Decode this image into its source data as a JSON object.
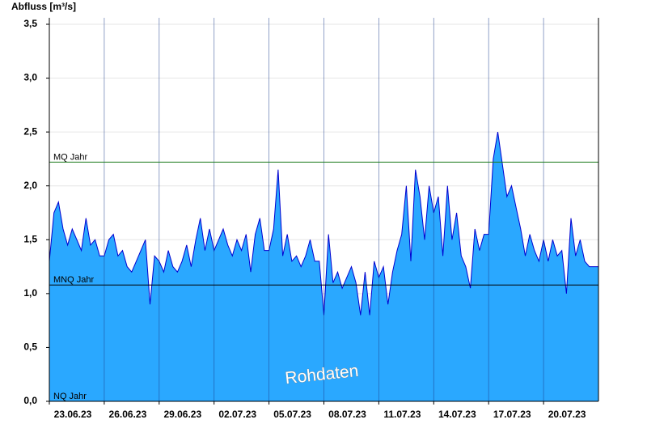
{
  "chart_data": {
    "type": "area",
    "y_label": "Abfluss [m³/s]",
    "watermark": "Rohdaten",
    "xlim": [
      "2023-06-23T00:00",
      "2023-07-23T00:00"
    ],
    "xticks": [
      {
        "value": "2023-06-23T00:00",
        "label": "23.06.23"
      },
      {
        "value": "2023-06-26T00:00",
        "label": "26.06.23"
      },
      {
        "value": "2023-06-29T00:00",
        "label": "29.06.23"
      },
      {
        "value": "2023-07-02T00:00",
        "label": "02.07.23"
      },
      {
        "value": "2023-07-05T00:00",
        "label": "05.07.23"
      },
      {
        "value": "2023-07-08T00:00",
        "label": "08.07.23"
      },
      {
        "value": "2023-07-11T00:00",
        "label": "11.07.23"
      },
      {
        "value": "2023-07-14T00:00",
        "label": "14.07.23"
      },
      {
        "value": "2023-07-17T00:00",
        "label": "17.07.23"
      },
      {
        "value": "2023-07-20T00:00",
        "label": "20.07.23"
      }
    ],
    "ylim": [
      0,
      3.56
    ],
    "yticks": [
      {
        "value": 0,
        "label": "0,0"
      },
      {
        "value": 0.5,
        "label": "0,5"
      },
      {
        "value": 1,
        "label": "1,0"
      },
      {
        "value": 1.5,
        "label": "1,5"
      },
      {
        "value": 2,
        "label": "2,0"
      },
      {
        "value": 2.5,
        "label": "2,5"
      },
      {
        "value": 3,
        "label": "3,0"
      },
      {
        "value": 3.5,
        "label": "3,5"
      }
    ],
    "grid": true,
    "reference_lines": [
      {
        "name": "MQ Jahr",
        "value": 2.22,
        "color": "#1a7a1a"
      },
      {
        "name": "MNQ Jahr",
        "value": 1.08,
        "color": "#000000"
      },
      {
        "name": "NQ Jahr",
        "value": 0,
        "color": "#000000"
      }
    ],
    "series": [
      {
        "fill": "#2aa8ff",
        "color": "#0000d0",
        "x": [
          "2023-06-23T00:00",
          "2023-06-23T06:00",
          "2023-06-23T12:00",
          "2023-06-23T18:00",
          "2023-06-24T00:00",
          "2023-06-24T06:00",
          "2023-06-24T12:00",
          "2023-06-24T18:00",
          "2023-06-25T00:00",
          "2023-06-25T06:00",
          "2023-06-25T12:00",
          "2023-06-25T18:00",
          "2023-06-26T00:00",
          "2023-06-26T06:00",
          "2023-06-26T12:00",
          "2023-06-26T18:00",
          "2023-06-27T00:00",
          "2023-06-27T06:00",
          "2023-06-27T12:00",
          "2023-06-27T18:00",
          "2023-06-28T00:00",
          "2023-06-28T06:00",
          "2023-06-28T12:00",
          "2023-06-28T18:00",
          "2023-06-29T00:00",
          "2023-06-29T06:00",
          "2023-06-29T12:00",
          "2023-06-29T18:00",
          "2023-06-30T00:00",
          "2023-06-30T06:00",
          "2023-06-30T12:00",
          "2023-06-30T18:00",
          "2023-07-01T00:00",
          "2023-07-01T06:00",
          "2023-07-01T12:00",
          "2023-07-01T18:00",
          "2023-07-02T00:00",
          "2023-07-02T06:00",
          "2023-07-02T12:00",
          "2023-07-02T18:00",
          "2023-07-03T00:00",
          "2023-07-03T06:00",
          "2023-07-03T12:00",
          "2023-07-03T18:00",
          "2023-07-04T00:00",
          "2023-07-04T06:00",
          "2023-07-04T12:00",
          "2023-07-04T18:00",
          "2023-07-05T00:00",
          "2023-07-05T06:00",
          "2023-07-05T12:00",
          "2023-07-05T18:00",
          "2023-07-06T00:00",
          "2023-07-06T06:00",
          "2023-07-06T12:00",
          "2023-07-06T18:00",
          "2023-07-07T00:00",
          "2023-07-07T06:00",
          "2023-07-07T12:00",
          "2023-07-07T18:00",
          "2023-07-08T00:00",
          "2023-07-08T06:00",
          "2023-07-08T12:00",
          "2023-07-08T18:00",
          "2023-07-09T00:00",
          "2023-07-09T06:00",
          "2023-07-09T12:00",
          "2023-07-09T18:00",
          "2023-07-10T00:00",
          "2023-07-10T06:00",
          "2023-07-10T12:00",
          "2023-07-10T18:00",
          "2023-07-11T00:00",
          "2023-07-11T06:00",
          "2023-07-11T12:00",
          "2023-07-11T18:00",
          "2023-07-12T00:00",
          "2023-07-12T06:00",
          "2023-07-12T12:00",
          "2023-07-12T18:00",
          "2023-07-13T00:00",
          "2023-07-13T06:00",
          "2023-07-13T12:00",
          "2023-07-13T18:00",
          "2023-07-14T00:00",
          "2023-07-14T06:00",
          "2023-07-14T12:00",
          "2023-07-14T18:00",
          "2023-07-15T00:00",
          "2023-07-15T06:00",
          "2023-07-15T12:00",
          "2023-07-15T18:00",
          "2023-07-16T00:00",
          "2023-07-16T06:00",
          "2023-07-16T12:00",
          "2023-07-16T18:00",
          "2023-07-17T00:00",
          "2023-07-17T06:00",
          "2023-07-17T12:00",
          "2023-07-17T18:00",
          "2023-07-18T00:00",
          "2023-07-18T06:00",
          "2023-07-18T12:00",
          "2023-07-18T18:00",
          "2023-07-19T00:00",
          "2023-07-19T06:00",
          "2023-07-19T12:00",
          "2023-07-19T18:00",
          "2023-07-20T00:00",
          "2023-07-20T06:00",
          "2023-07-20T12:00",
          "2023-07-20T18:00",
          "2023-07-21T00:00",
          "2023-07-21T06:00",
          "2023-07-21T12:00",
          "2023-07-21T18:00",
          "2023-07-22T00:00",
          "2023-07-22T06:00",
          "2023-07-22T12:00",
          "2023-07-22T18:00",
          "2023-07-23T00:00"
        ],
        "values": [
          1.3,
          1.75,
          1.85,
          1.6,
          1.45,
          1.6,
          1.5,
          1.4,
          1.7,
          1.45,
          1.5,
          1.35,
          1.35,
          1.5,
          1.55,
          1.35,
          1.4,
          1.25,
          1.2,
          1.3,
          1.4,
          1.5,
          0.9,
          1.35,
          1.3,
          1.2,
          1.4,
          1.25,
          1.2,
          1.3,
          1.45,
          1.25,
          1.5,
          1.7,
          1.4,
          1.6,
          1.4,
          1.5,
          1.6,
          1.45,
          1.35,
          1.5,
          1.4,
          1.55,
          1.2,
          1.55,
          1.7,
          1.4,
          1.4,
          1.6,
          2.15,
          1.35,
          1.55,
          1.3,
          1.35,
          1.25,
          1.35,
          1.5,
          1.3,
          1.3,
          0.8,
          1.55,
          1.1,
          1.2,
          1.05,
          1.15,
          1.25,
          1.1,
          0.8,
          1.2,
          0.8,
          1.3,
          1.15,
          1.25,
          0.9,
          1.2,
          1.4,
          1.55,
          2.0,
          1.3,
          2.15,
          1.9,
          1.5,
          2.0,
          1.75,
          1.9,
          1.35,
          2.0,
          1.5,
          1.75,
          1.35,
          1.25,
          1.05,
          1.6,
          1.4,
          1.55,
          1.55,
          2.25,
          2.5,
          2.2,
          1.9,
          2.0,
          1.8,
          1.6,
          1.35,
          1.55,
          1.4,
          1.3,
          1.5,
          1.3,
          1.5,
          1.35,
          1.4,
          1.0,
          1.7,
          1.35,
          1.5,
          1.3,
          1.25,
          1.25,
          1.25
        ]
      }
    ]
  }
}
